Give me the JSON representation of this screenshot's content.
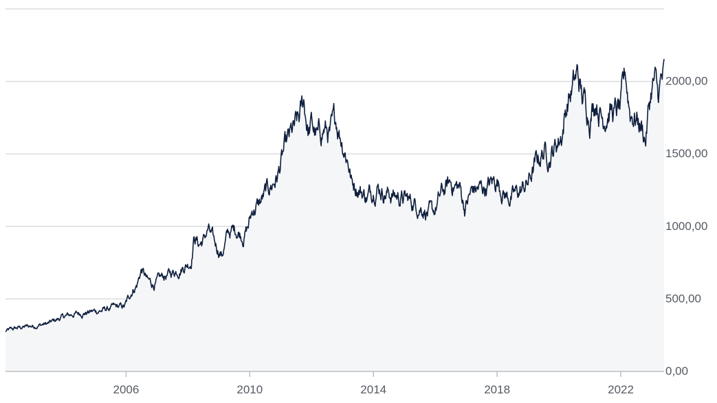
{
  "chart_data": {
    "type": "area",
    "title": "",
    "xlabel": "",
    "ylabel": "",
    "x_ticks": [
      "2006",
      "2010",
      "2014",
      "2018",
      "2022"
    ],
    "y_ticks": [
      "0,00",
      "500,00",
      "1000,00",
      "1500,00",
      "2000,00"
    ],
    "ylim": [
      0,
      2500
    ],
    "xlim": [
      2002.1,
      2023.4
    ],
    "grid": "horizontal",
    "y_axis_side": "right",
    "colors": {
      "line": "#0f1f3d",
      "fill": "#f5f6f8",
      "grid": "#d9dcdf",
      "tick_text": "#555a62"
    },
    "series": [
      {
        "x": [
          2002.1,
          2002.5,
          2003.0,
          2003.5,
          2003.9,
          2004.3,
          2004.8,
          2005.2,
          2005.6,
          2005.95,
          2006.2,
          2006.35,
          2006.5,
          2006.7,
          2006.9,
          2007.2,
          2007.5,
          2007.8,
          2008.1,
          2008.2,
          2008.35,
          2008.5,
          2008.65,
          2008.85,
          2009.1,
          2009.3,
          2009.55,
          2009.8,
          2009.95,
          2010.1,
          2010.3,
          2010.6,
          2010.9,
          2011.1,
          2011.3,
          2011.6,
          2011.75,
          2011.9,
          2012.0,
          2012.2,
          2012.4,
          2012.6,
          2012.8,
          2013.0,
          2013.2,
          2013.3,
          2013.4,
          2013.6,
          2013.8,
          2014.1,
          2014.3,
          2014.6,
          2014.9,
          2015.3,
          2015.6,
          2015.9,
          2016.0,
          2016.2,
          2016.5,
          2016.8,
          2016.95,
          2017.2,
          2017.5,
          2017.8,
          2018.0,
          2018.3,
          2018.5,
          2018.8,
          2019.0,
          2019.3,
          2019.5,
          2019.7,
          2019.9,
          2020.1,
          2020.2,
          2020.3,
          2020.5,
          2020.6,
          2020.75,
          2020.85,
          2021.0,
          2021.2,
          2021.4,
          2021.6,
          2021.8,
          2022.0,
          2022.15,
          2022.3,
          2022.5,
          2022.7,
          2022.8,
          2022.9,
          2023.0,
          2023.1,
          2023.2,
          2023.3,
          2023.4
        ],
        "values": [
          277,
          300,
          315,
          330,
          370,
          395,
          410,
          420,
          440,
          445,
          560,
          600,
          705,
          620,
          600,
          650,
          680,
          720,
          760,
          940,
          880,
          900,
          980,
          880,
          810,
          950,
          980,
          940,
          1000,
          1120,
          1150,
          1250,
          1350,
          1500,
          1600,
          1720,
          1860,
          1650,
          1700,
          1600,
          1680,
          1620,
          1730,
          1600,
          1450,
          1300,
          1300,
          1250,
          1200,
          1300,
          1250,
          1220,
          1200,
          1160,
          1140,
          1070,
          1110,
          1220,
          1300,
          1260,
          1130,
          1250,
          1260,
          1290,
          1320,
          1210,
          1200,
          1250,
          1300,
          1450,
          1520,
          1500,
          1560,
          1650,
          1780,
          1880,
          1980,
          2040,
          1880,
          1850,
          1780,
          1900,
          1750,
          1820,
          1780,
          1800,
          2040,
          1800,
          1760,
          1680,
          1600,
          1800,
          1950,
          2000,
          1880,
          1990,
          2020
        ]
      }
    ]
  }
}
